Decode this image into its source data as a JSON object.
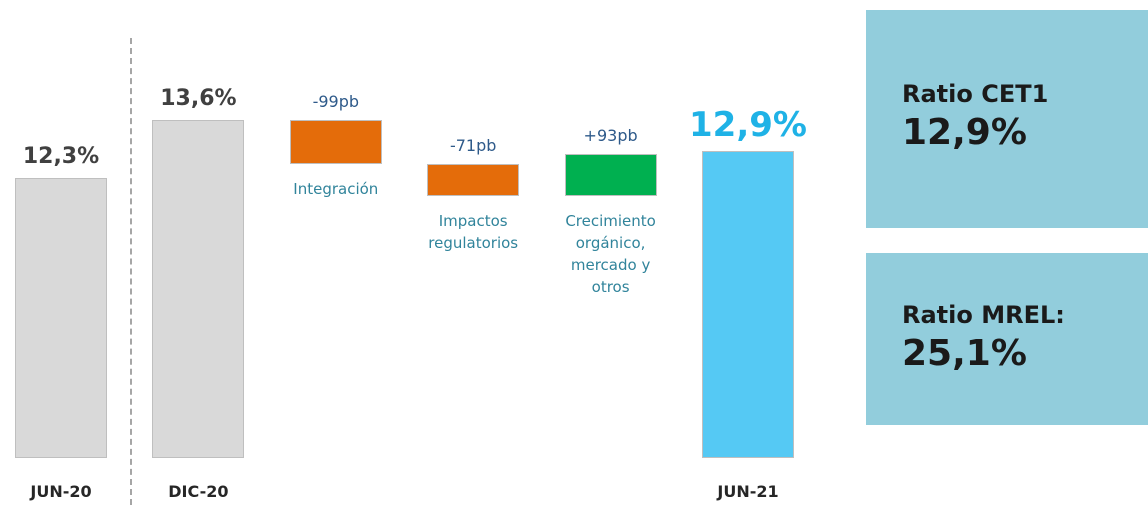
{
  "chart_data": {
    "type": "waterfall",
    "categories": [
      "JUN-20",
      "DIC-20",
      "Integración",
      "Impactos regulatorios",
      "Crecimiento orgánico, mercado y otros",
      "JUN-21"
    ],
    "measure": [
      "total",
      "total",
      "relative",
      "relative",
      "relative",
      "total"
    ],
    "values": [
      12.3,
      13.6,
      -99,
      -71,
      93,
      12.9
    ],
    "value_labels": [
      "12,3%",
      "13,6%",
      "-99pb",
      "-71pb",
      "+93pb",
      "12,9%"
    ],
    "colors": [
      "#d9d9d9",
      "#d9d9d9",
      "#e46c0a",
      "#e46c0a",
      "#00b050",
      "#55c9f4"
    ],
    "ylim": [
      6,
      16.3
    ]
  },
  "panels": [
    {
      "label": "Ratio CET1",
      "value": "12,9%"
    },
    {
      "label": "Ratio MREL:",
      "value": "25,1%"
    }
  ]
}
